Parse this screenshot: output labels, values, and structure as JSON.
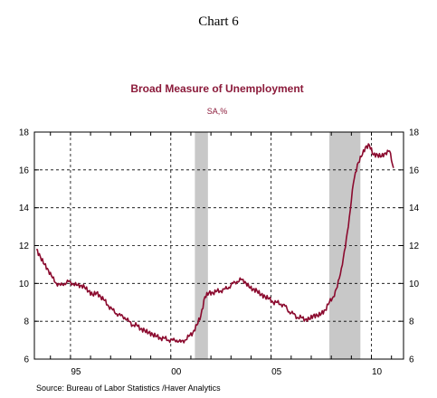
{
  "chart_data": {
    "type": "line",
    "heading": "Chart 6",
    "title": "Broad Measure of Unemployment",
    "subtitle": "SA,%",
    "source": "Source:  Bureau of Labor Statistics /Haver Analytics",
    "y_ticks": [
      "6",
      "8",
      "10",
      "12",
      "14",
      "16",
      "18"
    ],
    "x_ticks": [
      {
        "label": "95",
        "x": 1995
      },
      {
        "label": "00",
        "x": 2000
      },
      {
        "label": "05",
        "x": 2005
      },
      {
        "label": "10",
        "x": 2010
      }
    ],
    "xlim": [
      1993.2,
      2011.6
    ],
    "ylim": [
      6,
      18
    ],
    "grid": true,
    "line_color": "#8b0a2e",
    "recession_color": "#c8c8c8",
    "recessions": [
      [
        2001.2,
        2001.85
      ],
      [
        2007.9,
        2009.45
      ]
    ],
    "series": [
      {
        "x": [
          1993.3,
          1993.5,
          1993.7,
          1993.9,
          1994.1,
          1994.3,
          1994.5,
          1994.7,
          1994.9,
          1995.1,
          1995.3,
          1995.5,
          1995.7,
          1995.9,
          1996.1,
          1996.3,
          1996.5,
          1996.7,
          1996.9,
          1997.1,
          1997.3,
          1997.5,
          1997.7,
          1997.9,
          1998.1,
          1998.3,
          1998.5,
          1998.7,
          1998.9,
          1999.1,
          1999.3,
          1999.5,
          1999.7,
          1999.9,
          2000.1,
          2000.3,
          2000.5,
          2000.7,
          2000.9,
          2001.1,
          2001.3,
          2001.5,
          2001.7,
          2001.9,
          2002.1,
          2002.3,
          2002.5,
          2002.7,
          2002.9,
          2003.1,
          2003.3,
          2003.5,
          2003.7,
          2003.9,
          2004.1,
          2004.3,
          2004.5,
          2004.7,
          2004.9,
          2005.1,
          2005.3,
          2005.5,
          2005.7,
          2005.9,
          2006.1,
          2006.3,
          2006.5,
          2006.7,
          2006.9,
          2007.1,
          2007.3,
          2007.5,
          2007.7,
          2007.9,
          2008.1,
          2008.3,
          2008.5,
          2008.7,
          2008.9,
          2009.1,
          2009.3,
          2009.5,
          2009.7,
          2009.9,
          2010.1,
          2010.3,
          2010.5,
          2010.7,
          2010.9,
          2011.1
        ],
        "y": [
          11.8,
          11.4,
          11.0,
          10.7,
          10.3,
          10.0,
          9.9,
          10.0,
          10.1,
          10.0,
          9.9,
          9.9,
          9.8,
          9.6,
          9.4,
          9.5,
          9.3,
          9.1,
          8.8,
          8.6,
          8.4,
          8.3,
          8.2,
          8.0,
          7.8,
          7.8,
          7.6,
          7.5,
          7.4,
          7.3,
          7.2,
          7.1,
          7.1,
          7.0,
          7.0,
          7.0,
          6.9,
          7.0,
          7.2,
          7.4,
          7.8,
          8.3,
          9.3,
          9.5,
          9.5,
          9.6,
          9.6,
          9.7,
          9.8,
          10.0,
          10.1,
          10.2,
          10.1,
          9.8,
          9.7,
          9.6,
          9.4,
          9.3,
          9.2,
          9.0,
          9.0,
          8.9,
          8.8,
          8.5,
          8.4,
          8.2,
          8.2,
          8.1,
          8.1,
          8.3,
          8.3,
          8.4,
          8.6,
          9.0,
          9.3,
          9.8,
          10.8,
          11.9,
          13.5,
          15.3,
          16.3,
          16.7,
          17.2,
          17.3,
          16.8,
          16.8,
          16.7,
          16.9,
          17.0,
          16.1
        ]
      }
    ]
  }
}
